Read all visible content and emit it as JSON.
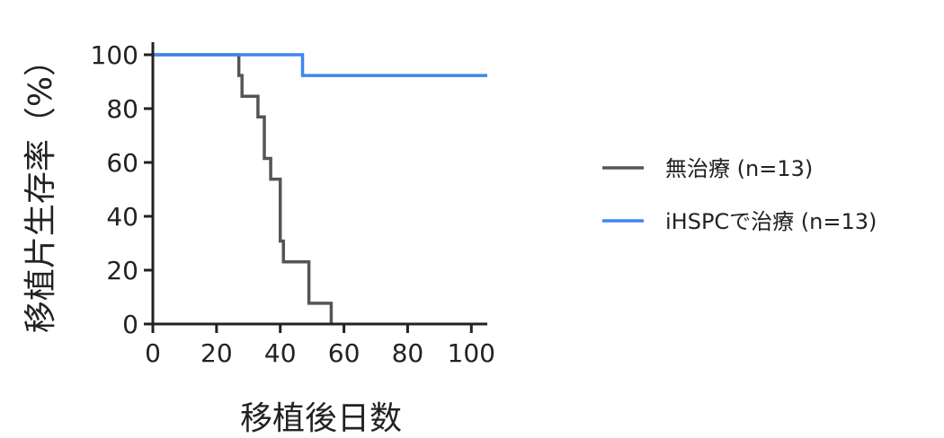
{
  "chart_data": {
    "type": "line",
    "subtype": "kaplan-meier-step",
    "xlabel": "移植後日数",
    "ylabel": "移植片生存率（%）",
    "xlim": [
      0,
      105
    ],
    "ylim": [
      0,
      100
    ],
    "x_ticks": [
      "0",
      "20",
      "40",
      "60",
      "80",
      "100"
    ],
    "y_ticks": [
      "0",
      "20",
      "40",
      "60",
      "80",
      "100"
    ],
    "grid": false,
    "legend_position": "right",
    "series": [
      {
        "name": "無治療 (n=13)",
        "color": "#555555",
        "points": [
          [
            0,
            100
          ],
          [
            27,
            100
          ],
          [
            27,
            92.3
          ],
          [
            28,
            92.3
          ],
          [
            28,
            84.6
          ],
          [
            33,
            84.6
          ],
          [
            33,
            76.9
          ],
          [
            35,
            76.9
          ],
          [
            35,
            61.5
          ],
          [
            37,
            61.5
          ],
          [
            37,
            53.8
          ],
          [
            40,
            53.8
          ],
          [
            40,
            30.8
          ],
          [
            41,
            30.8
          ],
          [
            41,
            23.1
          ],
          [
            49,
            23.1
          ],
          [
            49,
            7.7
          ],
          [
            56,
            7.7
          ],
          [
            56,
            0
          ]
        ]
      },
      {
        "name": "iHSPCで治療 (n=13)",
        "color": "#3e86f0",
        "points": [
          [
            0,
            100
          ],
          [
            47,
            100
          ],
          [
            47,
            92.3
          ],
          [
            105,
            92.3
          ]
        ]
      }
    ]
  }
}
